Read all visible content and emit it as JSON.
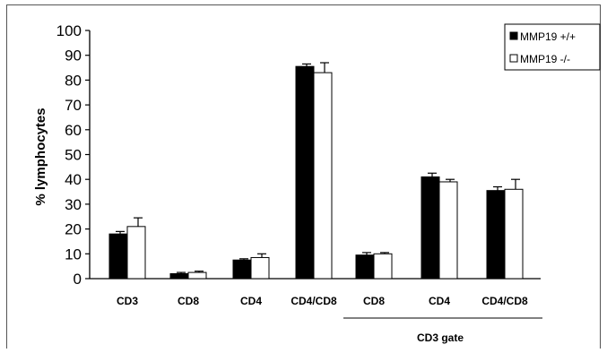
{
  "chart_data": {
    "type": "bar",
    "title": "",
    "xlabel": "",
    "ylabel": "% lymphocytes",
    "ylim": [
      0,
      100
    ],
    "yticks": [
      0,
      10,
      20,
      30,
      40,
      50,
      60,
      70,
      80,
      90,
      100
    ],
    "categories": [
      "CD3",
      "CD8",
      "CD4",
      "CD4/CD8",
      "CD8",
      "CD4",
      "CD4/CD8"
    ],
    "series": [
      {
        "name": "MMP19 +/+",
        "color": "#000000",
        "values": [
          18,
          2,
          7.5,
          85.5,
          9.5,
          41,
          35.5
        ],
        "errors": [
          1,
          0.5,
          0.5,
          1,
          1,
          1.5,
          1.5
        ]
      },
      {
        "name": "MMP19 -/-",
        "color": "#ffffff",
        "values": [
          21,
          2.5,
          8.5,
          83,
          10,
          39,
          36
        ],
        "errors": [
          3.5,
          0.5,
          1.5,
          4,
          0.5,
          1,
          4
        ]
      }
    ],
    "group_annotation": {
      "label": "CD3 gate",
      "spans_categories": [
        4,
        6
      ]
    },
    "grid": false,
    "legend": "top-right"
  }
}
